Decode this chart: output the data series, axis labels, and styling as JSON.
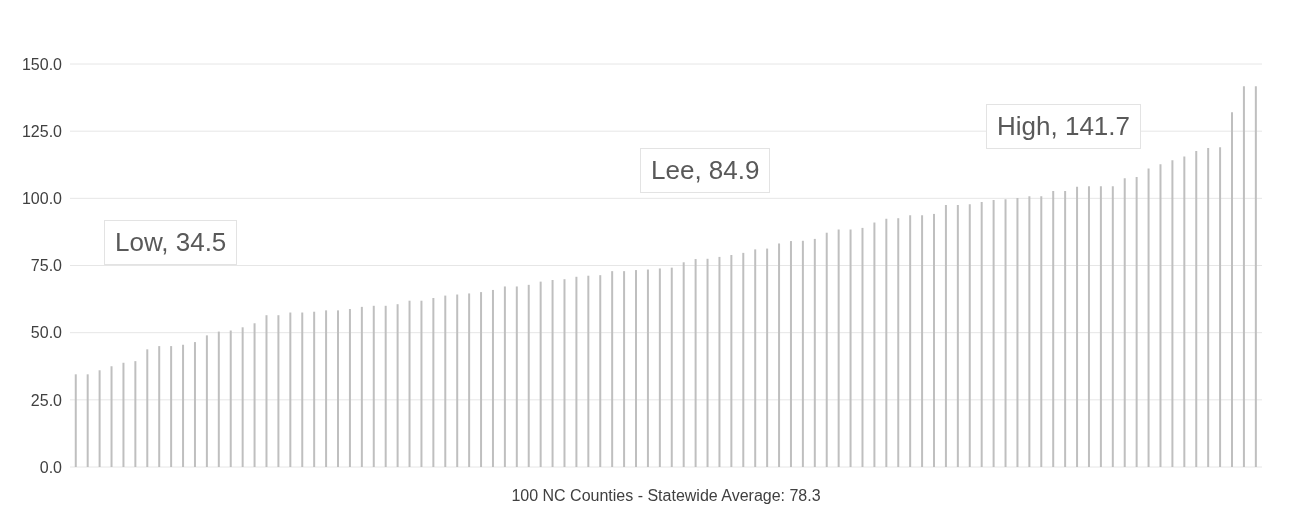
{
  "chart_data": {
    "type": "bar",
    "xlabel": "100 NC Counties - Statewide Average: 78.3",
    "categories": [
      null,
      null,
      null,
      null,
      null,
      null,
      null,
      null,
      null,
      null,
      null,
      null,
      null,
      null,
      null,
      null,
      null,
      null,
      null,
      null,
      null,
      null,
      null,
      null,
      null,
      null,
      null,
      null,
      null,
      null,
      null,
      null,
      null,
      null,
      null,
      null,
      null,
      null,
      null,
      null,
      null,
      null,
      null,
      null,
      null,
      null,
      null,
      null,
      null,
      null,
      null,
      null,
      null,
      null,
      null,
      null,
      null,
      null,
      null,
      null,
      null,
      null,
      null,
      null,
      null,
      null,
      null,
      null,
      null,
      null,
      null,
      null,
      null,
      null,
      null,
      null,
      null,
      null,
      null,
      null,
      null,
      null,
      null,
      null,
      null,
      null,
      null,
      null,
      null,
      null,
      null,
      null,
      null,
      null,
      null,
      null,
      null,
      null,
      null,
      null
    ],
    "values": [
      34.5,
      34.5,
      36,
      37.5,
      38.8,
      39.4,
      43.8,
      45,
      45,
      45.5,
      46.5,
      49,
      50.4,
      50.8,
      52,
      53.5,
      56.5,
      56.5,
      57.5,
      57.5,
      57.8,
      58.3,
      58.3,
      58.8,
      59.6,
      60,
      60,
      60.6,
      61.9,
      61.9,
      62.9,
      63.8,
      64.2,
      64.6,
      65.1,
      65.9,
      67.2,
      67.2,
      67.8,
      69,
      69.6,
      69.9,
      70.8,
      71.2,
      71.4,
      72.9,
      72.9,
      73.3,
      73.5,
      73.9,
      74.2,
      76.2,
      77.4,
      77.5,
      78.2,
      78.9,
      79.7,
      81,
      81.3,
      83.2,
      84.1,
      84.2,
      84.9,
      87.2,
      88.4,
      88.4,
      89,
      91,
      92.4,
      92.6,
      93.7,
      93.7,
      94.2,
      97.5,
      97.5,
      97.8,
      98.6,
      99.4,
      99.7,
      100.1,
      100.8,
      100.8,
      102.7,
      102.7,
      104.3,
      104.5,
      104.5,
      104.5,
      107.5,
      107.9,
      111.1,
      112.7,
      114.2,
      115.6,
      117.6,
      118.7,
      119,
      132,
      141.7,
      141.7
    ],
    "color": "#bfbfbf",
    "ylim": [
      0,
      150
    ],
    "yticks": [
      {
        "value": 0,
        "label": "0.0"
      },
      {
        "value": 25,
        "label": "25.0"
      },
      {
        "value": 50,
        "label": "50.0"
      },
      {
        "value": 75,
        "label": "75.0"
      },
      {
        "value": 100,
        "label": "100.0"
      },
      {
        "value": 125,
        "label": "125.0"
      },
      {
        "value": 150,
        "label": "150.0"
      }
    ],
    "grid": "y",
    "annotations": [
      "Low, 34.5",
      "Lee, 84.9",
      "High, 141.7"
    ]
  }
}
